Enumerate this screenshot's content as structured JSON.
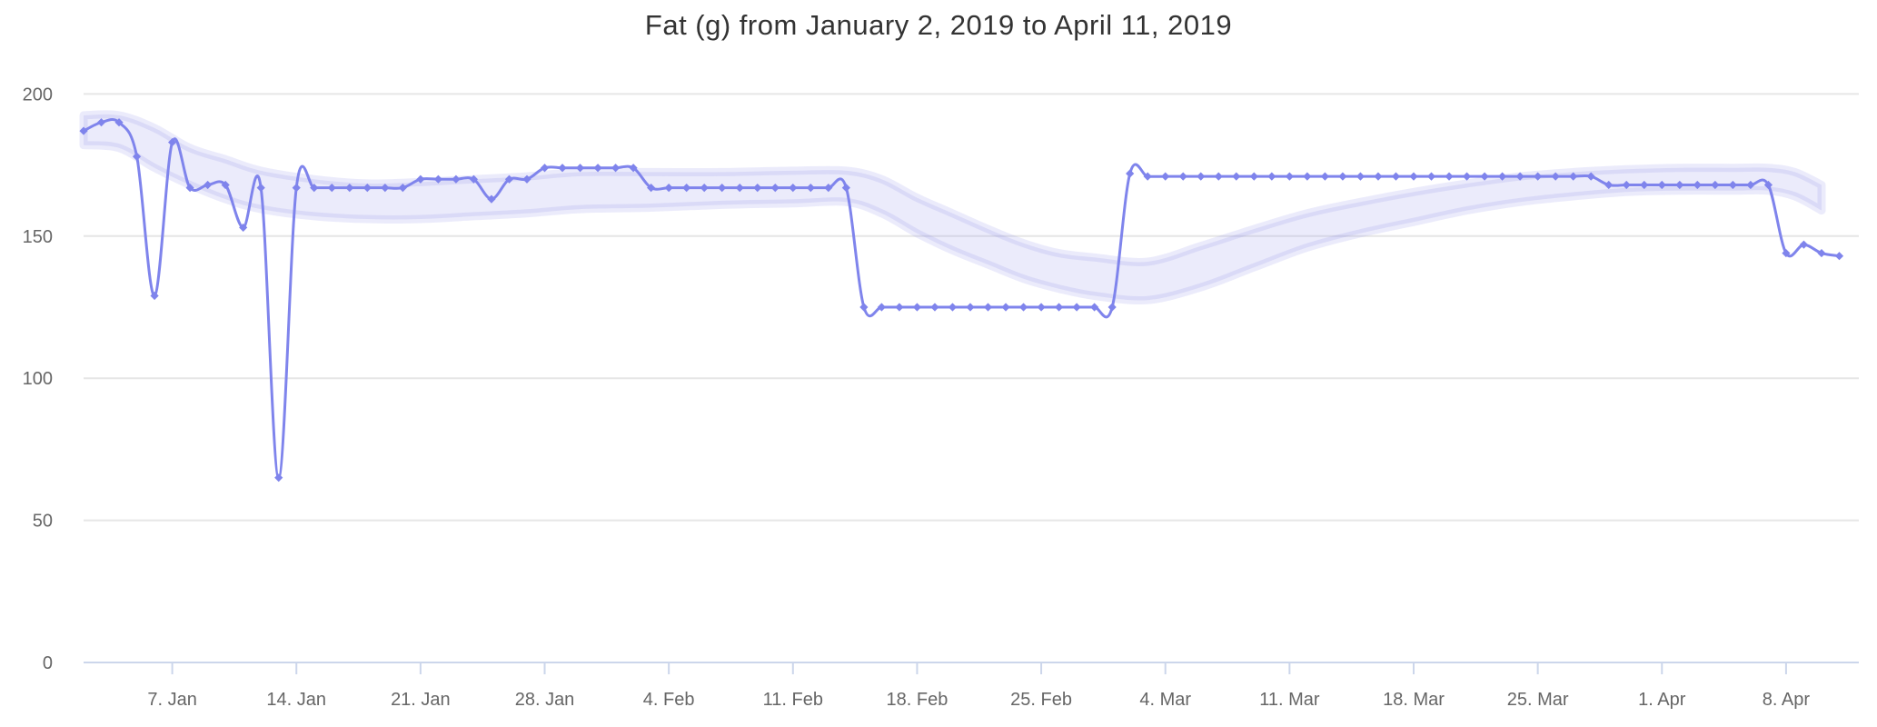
{
  "title": "Fat (g) from January 2, 2019 to April 11, 2019",
  "chart_data": {
    "type": "line",
    "title": "Fat (g) from January 2, 2019 to April 11, 2019",
    "xlabel": "",
    "ylabel": "",
    "start_date": "January 2, 2019",
    "end_date": "April 11, 2019",
    "ylim": [
      0,
      200
    ],
    "y_ticks": [
      0,
      50,
      100,
      150,
      200
    ],
    "x_ticks": [
      {
        "label": "7. Jan",
        "day": 5
      },
      {
        "label": "14. Jan",
        "day": 12
      },
      {
        "label": "21. Jan",
        "day": 19
      },
      {
        "label": "28. Jan",
        "day": 26
      },
      {
        "label": "4. Feb",
        "day": 33
      },
      {
        "label": "11. Feb",
        "day": 40
      },
      {
        "label": "18. Feb",
        "day": 47
      },
      {
        "label": "25. Feb",
        "day": 54
      },
      {
        "label": "4. Mar",
        "day": 61
      },
      {
        "label": "11. Mar",
        "day": 68
      },
      {
        "label": "18. Mar",
        "day": 75
      },
      {
        "label": "25. Mar",
        "day": 82
      },
      {
        "label": "1. Apr",
        "day": 89
      },
      {
        "label": "8. Apr",
        "day": 96
      }
    ],
    "grid": true,
    "legend": "none",
    "series": [
      {
        "name": "Fat (g)",
        "color": "#7f84ec",
        "marker": "diamond",
        "values": [
          187,
          190,
          190,
          178,
          129,
          183,
          167,
          168,
          168,
          153,
          167,
          65,
          167,
          167,
          167,
          167,
          167,
          167,
          167,
          170,
          170,
          170,
          170,
          163,
          170,
          170,
          174,
          174,
          174,
          174,
          174,
          174,
          167,
          167,
          167,
          167,
          167,
          167,
          167,
          167,
          167,
          167,
          167,
          167,
          125,
          125,
          125,
          125,
          125,
          125,
          125,
          125,
          125,
          125,
          125,
          125,
          125,
          125,
          125,
          172,
          171,
          171,
          171,
          171,
          171,
          171,
          171,
          171,
          171,
          171,
          171,
          171,
          171,
          171,
          171,
          171,
          171,
          171,
          171,
          171,
          171,
          171,
          171,
          171,
          171,
          171,
          168,
          168,
          168,
          168,
          168,
          168,
          168,
          168,
          168,
          168,
          144,
          147,
          144,
          143
        ]
      }
    ],
    "band": {
      "name": "trend-band",
      "color": "rgba(128,133,233,0.16)",
      "points_day_low_high": [
        [
          0,
          182,
          192.5
        ],
        [
          2,
          181,
          192.5
        ],
        [
          4,
          174,
          188
        ],
        [
          6,
          168,
          181
        ],
        [
          8,
          163,
          177
        ],
        [
          10,
          159.5,
          173
        ],
        [
          13,
          157,
          170
        ],
        [
          16,
          156,
          168.5
        ],
        [
          19,
          156,
          169
        ],
        [
          22,
          157,
          170
        ],
        [
          25,
          158,
          171
        ],
        [
          28,
          159.5,
          172.5
        ],
        [
          32,
          160,
          172.5
        ],
        [
          36,
          161,
          172.5
        ],
        [
          40,
          161.5,
          173
        ],
        [
          43,
          162,
          173
        ],
        [
          45,
          158,
          170
        ],
        [
          47,
          151,
          163.5
        ],
        [
          49,
          145,
          158
        ],
        [
          51,
          140,
          152.5
        ],
        [
          53,
          135,
          147.5
        ],
        [
          55,
          131.5,
          144
        ],
        [
          57,
          129,
          142.5
        ],
        [
          60,
          127.5,
          141
        ],
        [
          63,
          132,
          146.5
        ],
        [
          66,
          139,
          152.5
        ],
        [
          69,
          146,
          158
        ],
        [
          72,
          151,
          162
        ],
        [
          75,
          155,
          165.5
        ],
        [
          78,
          159,
          168.5
        ],
        [
          81,
          162,
          171
        ],
        [
          84,
          164,
          172.5
        ],
        [
          87,
          165.5,
          173.5
        ],
        [
          90,
          166,
          174
        ],
        [
          93,
          166,
          174
        ],
        [
          95,
          166,
          174
        ],
        [
          96.5,
          164,
          172.5
        ],
        [
          98,
          159,
          168
        ]
      ]
    },
    "colors": {
      "series": "#7f84ec",
      "band_fill": "rgba(128,133,233,0.16)",
      "gridline": "#e6e6e6",
      "axis_line": "#ccd6eb",
      "axis_label": "#666666",
      "title": "#333333"
    }
  }
}
